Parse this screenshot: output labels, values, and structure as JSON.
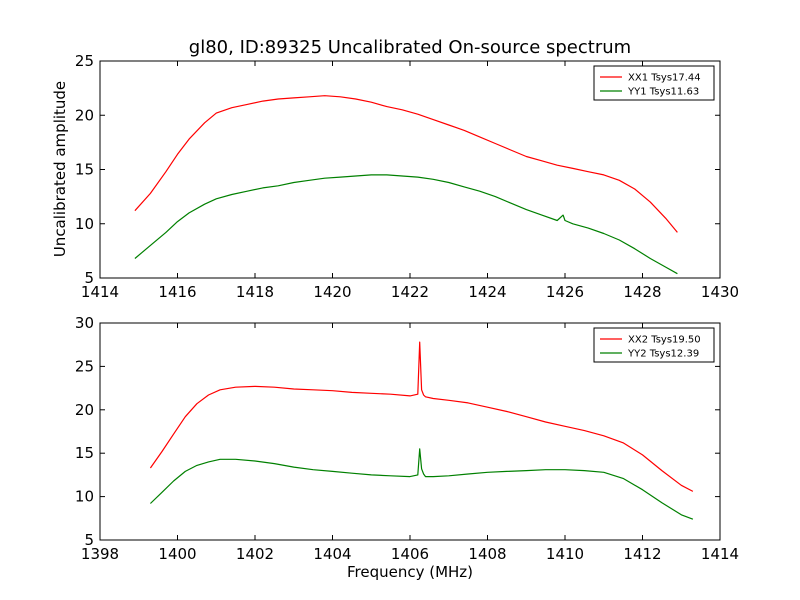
{
  "figure": {
    "title": "gl80, ID:89325 Uncalibrated On-source spectrum",
    "ylabel": "Uncalibrated amplitude",
    "xlabel": "Frequency (MHz)"
  },
  "colors": {
    "xx": "#ff0000",
    "yy": "#008000",
    "axes": "#000000",
    "background": "#ffffff"
  },
  "chart_data": [
    {
      "type": "line",
      "xlim": [
        1414,
        1430
      ],
      "ylim": [
        5,
        25
      ],
      "xticks": [
        1414,
        1416,
        1418,
        1420,
        1422,
        1424,
        1426,
        1428,
        1430
      ],
      "yticks": [
        5,
        10,
        15,
        20,
        25
      ],
      "legend_position": "top-right",
      "series": [
        {
          "name": "XX1 Tsys17.44",
          "color": "#ff0000",
          "x": [
            1414.9,
            1415.3,
            1415.7,
            1416.0,
            1416.3,
            1416.7,
            1417.0,
            1417.4,
            1417.8,
            1418.2,
            1418.6,
            1419.0,
            1419.4,
            1419.8,
            1420.2,
            1420.6,
            1421.0,
            1421.4,
            1421.8,
            1422.2,
            1422.6,
            1423.0,
            1423.4,
            1423.8,
            1424.2,
            1424.6,
            1425.0,
            1425.4,
            1425.8,
            1426.2,
            1426.6,
            1427.0,
            1427.4,
            1427.8,
            1428.2,
            1428.6,
            1428.9
          ],
          "y": [
            11.2,
            12.8,
            14.8,
            16.4,
            17.8,
            19.3,
            20.2,
            20.7,
            21.0,
            21.3,
            21.5,
            21.6,
            21.7,
            21.8,
            21.7,
            21.5,
            21.2,
            20.8,
            20.5,
            20.1,
            19.6,
            19.1,
            18.6,
            18.0,
            17.4,
            16.8,
            16.2,
            15.8,
            15.4,
            15.1,
            14.8,
            14.5,
            14.0,
            13.2,
            12.0,
            10.5,
            9.2
          ]
        },
        {
          "name": "YY1 Tsys11.63",
          "color": "#008000",
          "x": [
            1414.9,
            1415.3,
            1415.7,
            1416.0,
            1416.3,
            1416.7,
            1417.0,
            1417.4,
            1417.8,
            1418.2,
            1418.6,
            1419.0,
            1419.4,
            1419.8,
            1420.2,
            1420.6,
            1421.0,
            1421.4,
            1421.8,
            1422.2,
            1422.6,
            1423.0,
            1423.4,
            1423.8,
            1424.2,
            1424.6,
            1425.0,
            1425.4,
            1425.8,
            1425.95,
            1426.0,
            1426.2,
            1426.6,
            1427.0,
            1427.4,
            1427.8,
            1428.2,
            1428.6,
            1428.9
          ],
          "y": [
            6.8,
            8.0,
            9.2,
            10.2,
            11.0,
            11.8,
            12.3,
            12.7,
            13.0,
            13.3,
            13.5,
            13.8,
            14.0,
            14.2,
            14.3,
            14.4,
            14.5,
            14.5,
            14.4,
            14.3,
            14.1,
            13.8,
            13.4,
            13.0,
            12.5,
            11.9,
            11.3,
            10.8,
            10.3,
            10.8,
            10.3,
            10.0,
            9.6,
            9.1,
            8.5,
            7.7,
            6.8,
            6.0,
            5.4
          ]
        }
      ]
    },
    {
      "type": "line",
      "xlim": [
        1398,
        1414
      ],
      "ylim": [
        5,
        30
      ],
      "xticks": [
        1398,
        1400,
        1402,
        1404,
        1406,
        1408,
        1410,
        1412,
        1414
      ],
      "yticks": [
        5,
        10,
        15,
        20,
        25,
        30
      ],
      "legend_position": "top-right",
      "series": [
        {
          "name": "XX2 Tsys19.50",
          "color": "#ff0000",
          "x": [
            1399.3,
            1399.6,
            1399.9,
            1400.2,
            1400.5,
            1400.8,
            1401.1,
            1401.5,
            1402.0,
            1402.5,
            1403.0,
            1403.5,
            1404.0,
            1404.5,
            1405.0,
            1405.5,
            1406.0,
            1406.2,
            1406.25,
            1406.3,
            1406.35,
            1406.4,
            1406.6,
            1407.0,
            1407.5,
            1408.0,
            1408.5,
            1409.0,
            1409.5,
            1410.0,
            1410.5,
            1411.0,
            1411.5,
            1412.0,
            1412.5,
            1413.0,
            1413.3
          ],
          "y": [
            13.3,
            15.2,
            17.2,
            19.2,
            20.7,
            21.7,
            22.3,
            22.6,
            22.7,
            22.6,
            22.4,
            22.3,
            22.2,
            22.0,
            21.9,
            21.8,
            21.6,
            21.8,
            27.8,
            22.3,
            21.7,
            21.5,
            21.3,
            21.1,
            20.8,
            20.3,
            19.8,
            19.2,
            18.6,
            18.1,
            17.6,
            17.0,
            16.2,
            14.8,
            13.0,
            11.3,
            10.6
          ]
        },
        {
          "name": "YY2 Tsys12.39",
          "color": "#008000",
          "x": [
            1399.3,
            1399.6,
            1399.9,
            1400.2,
            1400.5,
            1400.8,
            1401.1,
            1401.5,
            1402.0,
            1402.5,
            1403.0,
            1403.5,
            1404.0,
            1404.5,
            1405.0,
            1405.5,
            1406.0,
            1406.2,
            1406.25,
            1406.3,
            1406.35,
            1406.4,
            1406.6,
            1407.0,
            1407.5,
            1408.0,
            1408.5,
            1409.0,
            1409.5,
            1410.0,
            1410.5,
            1411.0,
            1411.5,
            1412.0,
            1412.5,
            1413.0,
            1413.3
          ],
          "y": [
            9.2,
            10.5,
            11.8,
            12.9,
            13.6,
            14.0,
            14.3,
            14.3,
            14.1,
            13.8,
            13.4,
            13.1,
            12.9,
            12.7,
            12.5,
            12.4,
            12.3,
            12.5,
            15.5,
            13.2,
            12.6,
            12.3,
            12.3,
            12.4,
            12.6,
            12.8,
            12.9,
            13.0,
            13.1,
            13.1,
            13.0,
            12.8,
            12.1,
            10.8,
            9.3,
            7.9,
            7.4
          ]
        }
      ]
    }
  ]
}
